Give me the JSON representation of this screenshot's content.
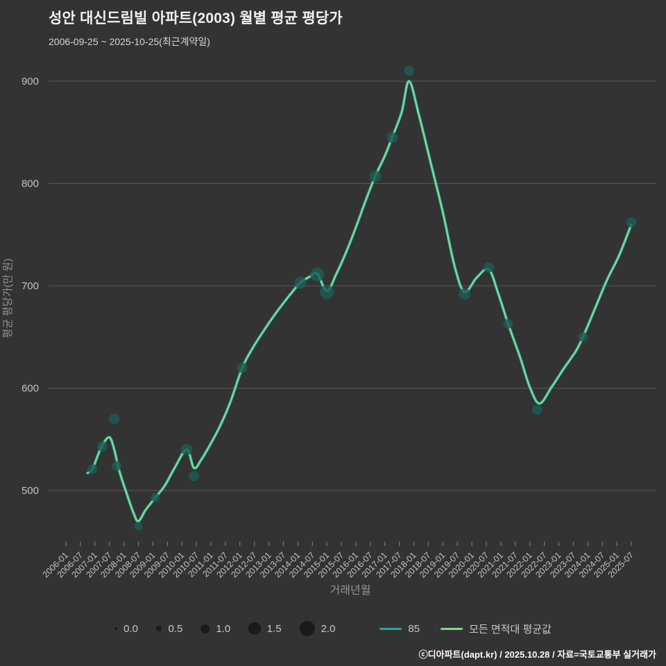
{
  "header": {
    "title": "성안 대신드림빌 아파트(2003) 월별 평균 평당가",
    "subtitle": "2006-09-25 ~ 2025-10-25(최근계약일)"
  },
  "footer": {
    "text": "ⓒ디아파트(dapt.kr) / 2025.10.28 / 자료=국토교통부 실거래가"
  },
  "colors": {
    "background": "#333333",
    "grid": "#585858",
    "tick": "#8a8a8a",
    "tick_label": "#c3c3c3",
    "axis_label": "#949494",
    "title": "#f2f2f2",
    "subtitle": "#d6d6d6",
    "footer": "#fafafa",
    "bubble": "#1a1a1a",
    "scatter": "#1d5b54"
  },
  "chart_data": {
    "type": "line",
    "title": "성안 대신드림빌 아파트(2003) 월별 평균 평당가",
    "xlabel": "거래년월",
    "ylabel": "평균 평당가(만 원)",
    "ylim": [
      440,
      935
    ],
    "yticks": [
      500,
      600,
      700,
      800,
      900
    ],
    "xticks": [
      "2006-01",
      "2006-07",
      "2007-01",
      "2007-07",
      "2008-01",
      "2008-07",
      "2009-01",
      "2009-07",
      "2010-01",
      "2010-07",
      "2011-01",
      "2011-07",
      "2012-01",
      "2012-07",
      "2013-01",
      "2013-07",
      "2014-01",
      "2014-07",
      "2015-01",
      "2015-07",
      "2016-01",
      "2016-07",
      "2017-01",
      "2017-07",
      "2018-01",
      "2018-07",
      "2019-01",
      "2019-07",
      "2020-01",
      "2020-07",
      "2021-01",
      "2021-07",
      "2022-01",
      "2022-07",
      "2023-01",
      "2023-07",
      "2024-01",
      "2024-07",
      "2025-01",
      "2025-07"
    ],
    "grid": "horizontal",
    "legend_position": "bottom",
    "series": [
      {
        "name": "85",
        "color": "#2aa79b",
        "width": 4
      },
      {
        "name": "모든 면적대 평균값",
        "color": "#82d98f",
        "width": 2.2
      }
    ],
    "line_points": [
      [
        "2006-10",
        517
      ],
      [
        "2006-12",
        521
      ],
      [
        "2007-02",
        533
      ],
      [
        "2007-04",
        544
      ],
      [
        "2007-07",
        552
      ],
      [
        "2007-09",
        540
      ],
      [
        "2007-11",
        520
      ],
      [
        "2008-02",
        498
      ],
      [
        "2008-05",
        478
      ],
      [
        "2008-07",
        470
      ],
      [
        "2008-10",
        481
      ],
      [
        "2009-02",
        493
      ],
      [
        "2009-06",
        505
      ],
      [
        "2009-10",
        522
      ],
      [
        "2010-03",
        540
      ],
      [
        "2010-06",
        522
      ],
      [
        "2010-09",
        530
      ],
      [
        "2011-01",
        546
      ],
      [
        "2011-05",
        564
      ],
      [
        "2011-09",
        586
      ],
      [
        "2012-02",
        620
      ],
      [
        "2012-06",
        638
      ],
      [
        "2012-10",
        653
      ],
      [
        "2013-02",
        667
      ],
      [
        "2013-06",
        680
      ],
      [
        "2013-10",
        692
      ],
      [
        "2014-02",
        703
      ],
      [
        "2014-06",
        709
      ],
      [
        "2014-09",
        712
      ],
      [
        "2015-01",
        695
      ],
      [
        "2015-05",
        712
      ],
      [
        "2015-09",
        733
      ],
      [
        "2016-01",
        757
      ],
      [
        "2016-05",
        783
      ],
      [
        "2016-09",
        807
      ],
      [
        "2017-01",
        827
      ],
      [
        "2017-04",
        845
      ],
      [
        "2017-08",
        870
      ],
      [
        "2017-11",
        900
      ],
      [
        "2018-03",
        868
      ],
      [
        "2018-08",
        820
      ],
      [
        "2019-01",
        772
      ],
      [
        "2019-06",
        718
      ],
      [
        "2019-10",
        694
      ],
      [
        "2020-03",
        708
      ],
      [
        "2020-08",
        716
      ],
      [
        "2020-12",
        692
      ],
      [
        "2021-04",
        663
      ],
      [
        "2021-09",
        630
      ],
      [
        "2022-01",
        601
      ],
      [
        "2022-05",
        585
      ],
      [
        "2022-10",
        601
      ],
      [
        "2023-03",
        619
      ],
      [
        "2023-08",
        636
      ],
      [
        "2023-11",
        650
      ],
      [
        "2024-04",
        678
      ],
      [
        "2024-09",
        706
      ],
      [
        "2025-02",
        730
      ],
      [
        "2025-07",
        760
      ]
    ],
    "scatter": {
      "color": "#1d5b54",
      "opacity": 0.82,
      "points": [
        [
          "2006-12",
          521,
          1.1
        ],
        [
          "2007-04",
          543,
          1.2
        ],
        [
          "2007-09",
          570,
          1.2
        ],
        [
          "2007-10",
          524,
          1.1
        ],
        [
          "2008-07",
          465,
          0.9
        ],
        [
          "2009-02",
          493,
          1.0
        ],
        [
          "2010-03",
          540,
          1.4
        ],
        [
          "2010-06",
          514,
          1.2
        ],
        [
          "2012-02",
          620,
          1.2
        ],
        [
          "2014-02",
          703,
          1.5
        ],
        [
          "2014-09",
          711,
          1.8
        ],
        [
          "2015-01",
          694,
          1.8
        ],
        [
          "2016-09",
          807,
          1.4
        ],
        [
          "2017-04",
          845,
          1.3
        ],
        [
          "2017-11",
          910,
          1.2
        ],
        [
          "2019-10",
          692,
          1.4
        ],
        [
          "2020-08",
          718,
          1.2
        ],
        [
          "2021-04",
          663,
          1.1
        ],
        [
          "2022-04",
          579,
          1.2
        ],
        [
          "2023-11",
          650,
          1.1
        ],
        [
          "2025-07",
          762,
          1.2
        ]
      ]
    },
    "size_legend": [
      0.0,
      0.5,
      1.0,
      1.5,
      2.0
    ]
  }
}
